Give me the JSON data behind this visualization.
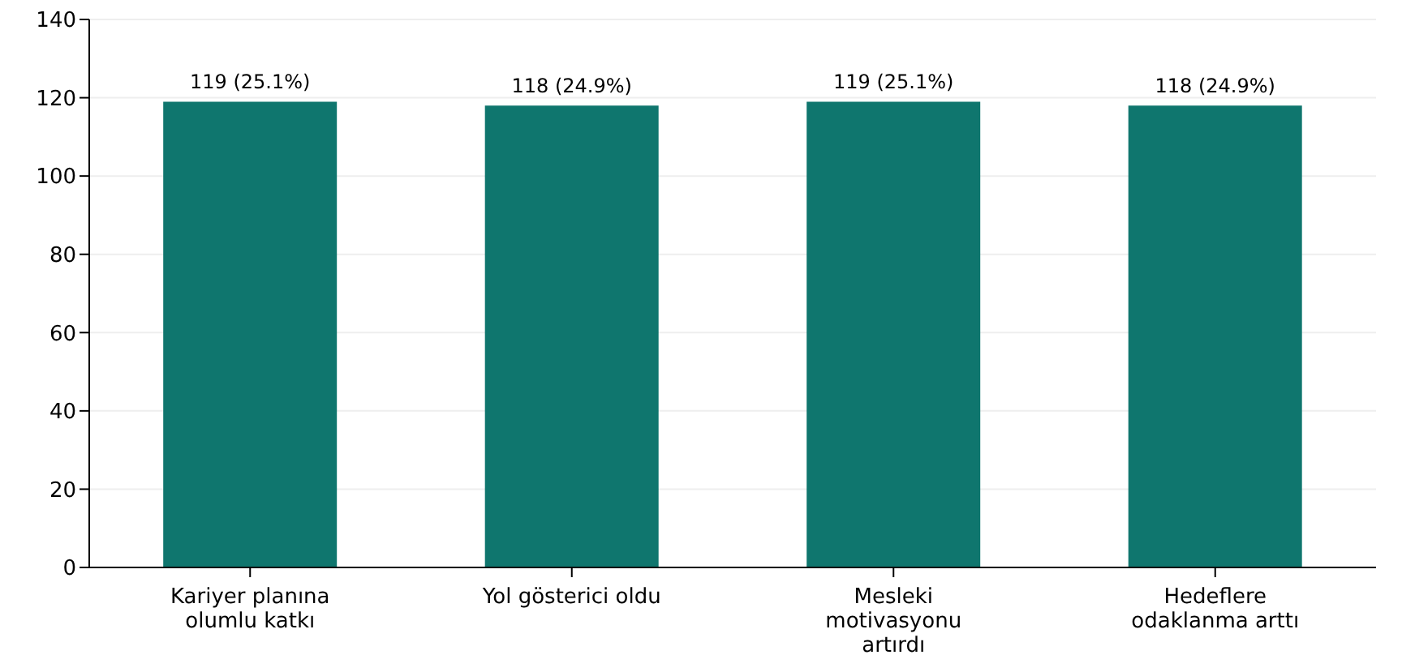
{
  "chart_data": {
    "type": "bar",
    "categories": [
      "Kariyer planına olumlu katkı",
      "Yol gösterici oldu",
      "Mesleki motivasyonu artırdı",
      "Hedeflere odaklanma arttı"
    ],
    "values": [
      119,
      118,
      119,
      118
    ],
    "value_labels": [
      "119 (25.1%)",
      "118 (24.9%)",
      "119 (25.1%)",
      "118 (24.9%)"
    ],
    "color": "#0f766e",
    "ylim": [
      0,
      140
    ],
    "yticks": [
      0,
      20,
      40,
      60,
      80,
      100,
      120,
      140
    ],
    "grid": "y"
  }
}
